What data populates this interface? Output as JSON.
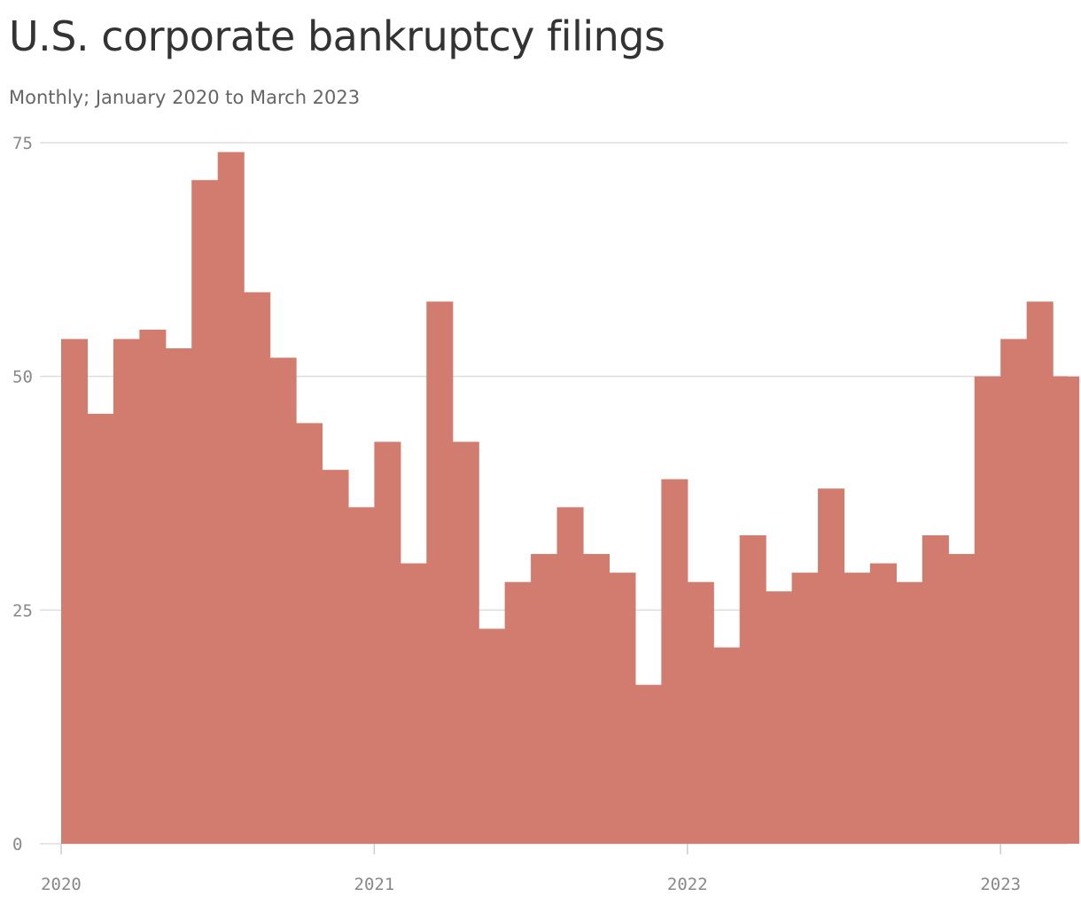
{
  "header": {
    "title": "U.S. corporate bankruptcy filings",
    "subtitle": "Monthly; January 2020 to March 2023"
  },
  "colors": {
    "bar": "#d27c6f",
    "grid": "#dddddd",
    "axis_text": "#888888"
  },
  "chart_data": {
    "type": "bar",
    "title": "U.S. corporate bankruptcy filings",
    "subtitle": "Monthly; January 2020 to March 2023",
    "xlabel": "",
    "ylabel": "",
    "ylim": [
      0,
      75
    ],
    "yticks": [
      0,
      25,
      50,
      75
    ],
    "xtick_labels": [
      "2020",
      "2021",
      "2022",
      "2023"
    ],
    "grid": true,
    "legend": "none",
    "categories": [
      "2020-01",
      "2020-02",
      "2020-03",
      "2020-04",
      "2020-05",
      "2020-06",
      "2020-07",
      "2020-08",
      "2020-09",
      "2020-10",
      "2020-11",
      "2020-12",
      "2021-01",
      "2021-02",
      "2021-03",
      "2021-04",
      "2021-05",
      "2021-06",
      "2021-07",
      "2021-08",
      "2021-09",
      "2021-10",
      "2021-11",
      "2021-12",
      "2022-01",
      "2022-02",
      "2022-03",
      "2022-04",
      "2022-05",
      "2022-06",
      "2022-07",
      "2022-08",
      "2022-09",
      "2022-10",
      "2022-11",
      "2022-12",
      "2023-01",
      "2023-02",
      "2023-03"
    ],
    "values": [
      54,
      46,
      54,
      55,
      53,
      71,
      74,
      59,
      52,
      45,
      40,
      36,
      43,
      30,
      58,
      43,
      23,
      28,
      31,
      36,
      31,
      29,
      17,
      39,
      28,
      21,
      33,
      27,
      29,
      38,
      29,
      30,
      28,
      33,
      31,
      50,
      54,
      58,
      50
    ]
  }
}
